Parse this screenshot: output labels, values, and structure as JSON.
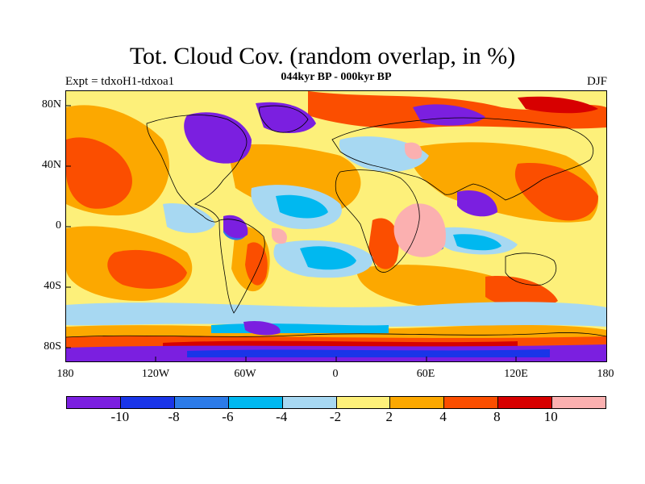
{
  "title": "Tot. Cloud Cov. (random overlap, in %)",
  "subtitle": "044kyr BP - 000kyr BP",
  "experiment": "Expt = tdxoH1-tdxoa1",
  "season": "DJF",
  "lat_labels": [
    "80N",
    "40N",
    "0",
    "40S",
    "80S"
  ],
  "lon_labels": [
    "180",
    "120W",
    "60W",
    "0",
    "60E",
    "120E",
    "180"
  ],
  "colorbar": {
    "colors": [
      "#7b1fe0",
      "#1a35e8",
      "#2c7be8",
      "#00b8f0",
      "#a7d8f2",
      "#fdf07a",
      "#fca800",
      "#fb4e00",
      "#d70000",
      "#fbb0b0"
    ],
    "labels": [
      "-10",
      "-8",
      "-6",
      "-4",
      "-2",
      "2",
      "4",
      "8",
      "10"
    ]
  }
}
